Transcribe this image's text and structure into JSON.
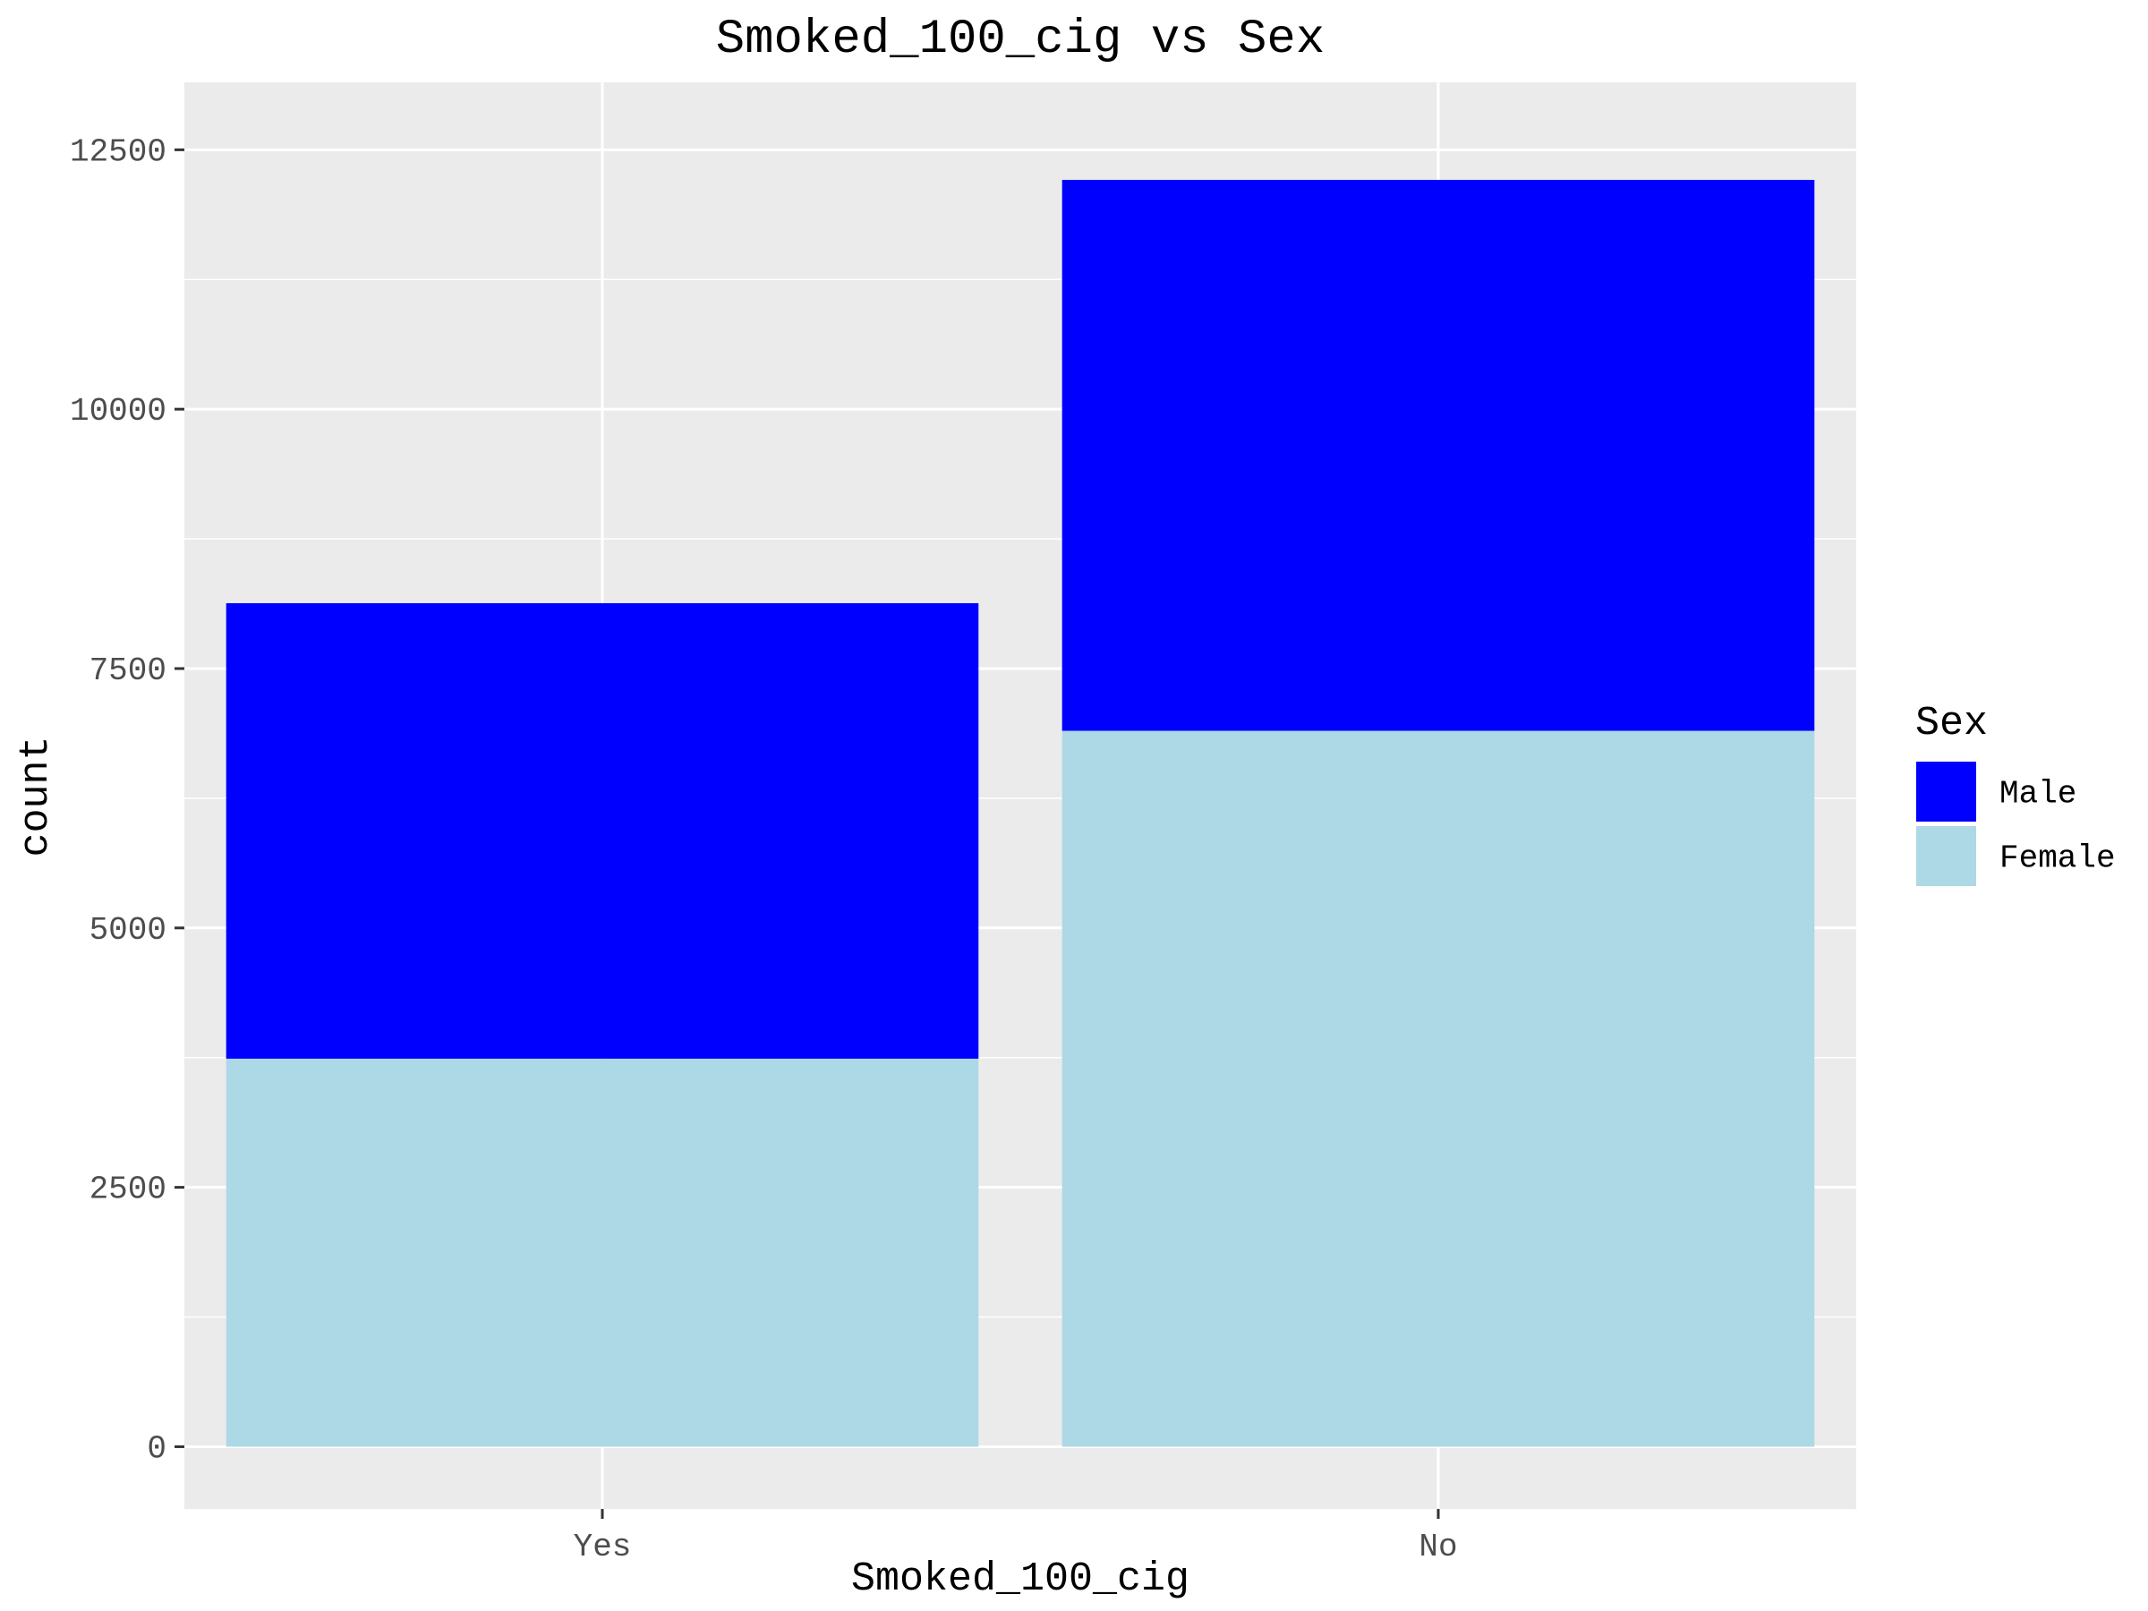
{
  "chart_data": {
    "type": "bar",
    "stacked": true,
    "title": "Smoked_100_cig vs Sex",
    "xlabel": "Smoked_100_cig",
    "ylabel": "count",
    "categories": [
      "Yes",
      "No"
    ],
    "series": [
      {
        "name": "Female",
        "color": "#add8e6",
        "values": [
          3740,
          6900
        ]
      },
      {
        "name": "Male",
        "color": "#0000ff",
        "values": [
          4390,
          5310
        ]
      }
    ],
    "ylim": [
      -600,
      13150
    ],
    "yticks": [
      0,
      2500,
      5000,
      7500,
      10000,
      12500
    ],
    "ytick_labels": [
      "0",
      "2500",
      "5000",
      "7500",
      "10000",
      "12500"
    ],
    "legend": {
      "title": "Sex",
      "placement": "right",
      "entries": [
        {
          "label": "Male",
          "color": "#0000ff"
        },
        {
          "label": "Female",
          "color": "#add8e6"
        }
      ]
    },
    "grid": true,
    "panel_background": "#ebebeb",
    "grid_color": "#ffffff"
  }
}
